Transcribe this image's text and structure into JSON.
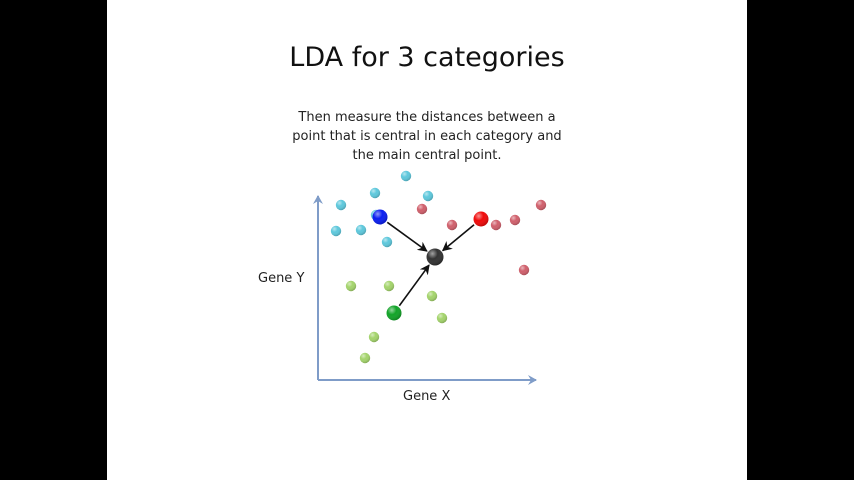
{
  "title": "LDA for 3 categories",
  "subtitle_lines": [
    "Then measure the distances between a",
    "point that is central in each category and",
    "the main central point."
  ],
  "axes": {
    "x_label": "Gene X",
    "y_label": "Gene Y",
    "color": "#7f9cc8"
  },
  "colors": {
    "cyan": "#5ec8dc",
    "red": "#d0606c",
    "green": "#a4d46c",
    "blue_center": "#0a1ef0",
    "red_center": "#f00a0a",
    "green_center": "#12a428",
    "main_center": "#333333"
  },
  "categories": [
    {
      "name": "cyan",
      "points": [
        [
          406,
          176
        ],
        [
          375,
          193
        ],
        [
          428,
          196
        ],
        [
          341,
          205
        ],
        [
          376,
          215
        ],
        [
          361,
          230
        ],
        [
          336,
          231
        ],
        [
          387,
          242
        ]
      ],
      "center": [
        380,
        217
      ],
      "center_key": "blue_center",
      "point_key": "cyan"
    },
    {
      "name": "red",
      "points": [
        [
          541,
          205
        ],
        [
          422,
          209
        ],
        [
          452,
          225
        ],
        [
          496,
          225
        ],
        [
          515,
          220
        ],
        [
          524,
          270
        ]
      ],
      "center": [
        481,
        219
      ],
      "center_key": "red_center",
      "point_key": "red"
    },
    {
      "name": "green",
      "points": [
        [
          351,
          286
        ],
        [
          389,
          286
        ],
        [
          432,
          296
        ],
        [
          442,
          318
        ],
        [
          374,
          337
        ],
        [
          365,
          358
        ]
      ],
      "center": [
        394,
        313
      ],
      "center_key": "green_center",
      "point_key": "green"
    }
  ],
  "main_center": [
    435,
    257
  ]
}
